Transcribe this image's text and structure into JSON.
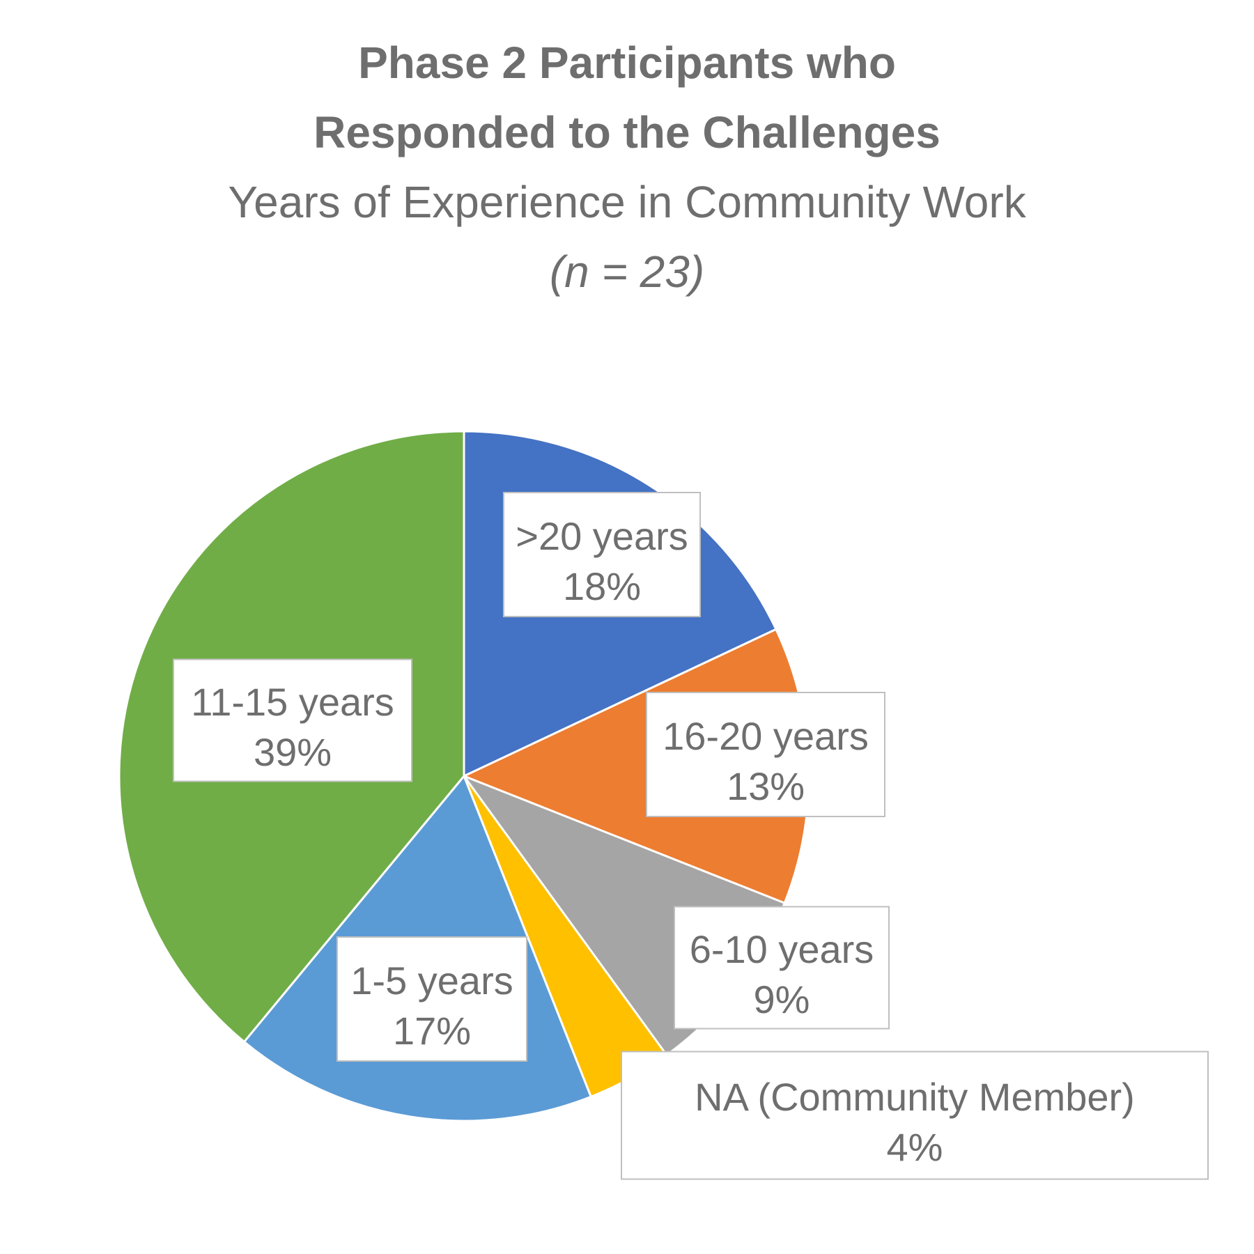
{
  "chart_data": {
    "type": "pie",
    "title": "Phase 2 Participants who Responded to the Challenges",
    "title_lines": [
      "Phase 2 Participants who",
      "Responded to the Challenges"
    ],
    "subtitle": "Years of Experience in Community Work",
    "note": "(n = 23)",
    "start_angle_deg": 0,
    "direction": "clockwise",
    "slices": [
      {
        "label": ">20 years",
        "value": 18,
        "display": "18%",
        "color": "#4472C4"
      },
      {
        "label": "16-20 years",
        "value": 13,
        "display": "13%",
        "color": "#ED7D31"
      },
      {
        "label": "6-10 years",
        "value": 9,
        "display": "9%",
        "color": "#A5A5A5"
      },
      {
        "label": "NA (Community Member)",
        "value": 4,
        "display": "4%",
        "color": "#FFC000"
      },
      {
        "label": "1-5 years",
        "value": 17,
        "display": "17%",
        "color": "#5B9BD5"
      },
      {
        "label": "11-15 years",
        "value": 39,
        "display": "39%",
        "color": "#70AD47"
      }
    ],
    "legend": "none",
    "data_labels": "category and percentage"
  }
}
